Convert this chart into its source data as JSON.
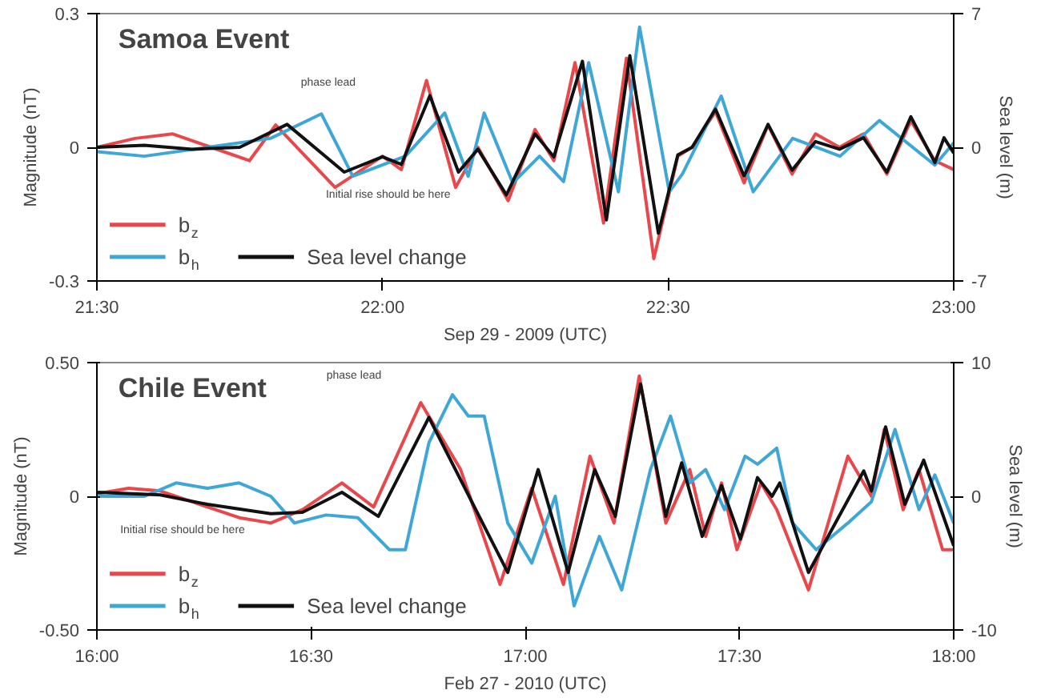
{
  "chart_data": [
    {
      "type": "line",
      "title": "Samoa Event",
      "xlabel": "Sep 29 - 2009 (UTC)",
      "ylabel": "Magnitude (nT)",
      "y2label": "Sea level (m)",
      "xlim": [
        21.5,
        23.0
      ],
      "xticks": [
        {
          "value": 21.5,
          "label": "21:30"
        },
        {
          "value": 22.0,
          "label": "22:00"
        },
        {
          "value": 22.5,
          "label": "22:30"
        },
        {
          "value": 23.0,
          "label": "23:00"
        }
      ],
      "ylim": [
        -0.3,
        0.3
      ],
      "yticks": [
        -0.3,
        0,
        0.3
      ],
      "y2lim": [
        -7,
        7
      ],
      "y2ticks": [
        -7,
        0,
        7
      ],
      "grid": false,
      "legend": "bottom left",
      "marker": "none",
      "line_style": "solid",
      "annotations": [
        "phase lead",
        "Initial rise should be here"
      ],
      "series": [
        {
          "name": "b$_{z}$",
          "color": "#e8474b",
          "x": [
            21.5,
            21.567,
            21.633,
            21.7,
            21.767,
            21.813,
            21.917,
            22.0,
            22.033,
            22.077,
            22.128,
            22.167,
            22.22,
            22.267,
            22.3,
            22.337,
            22.387,
            22.427,
            22.475,
            22.517,
            22.542,
            22.583,
            22.633,
            22.675,
            22.717,
            22.758,
            22.8,
            22.842,
            22.883,
            22.925,
            22.967,
            23.0
          ],
          "values": [
            0,
            0.02,
            0.03,
            0.0,
            -0.03,
            0.05,
            -0.09,
            -0.02,
            -0.05,
            0.15,
            -0.09,
            0.0,
            -0.12,
            0.04,
            -0.03,
            0.19,
            -0.17,
            0.2,
            -0.25,
            -0.02,
            0.0,
            0.08,
            -0.08,
            0.05,
            -0.06,
            0.03,
            0.0,
            0.03,
            -0.06,
            0.06,
            -0.03,
            -0.05
          ]
        },
        {
          "name": "b$_{h}$",
          "color": "#3fa7d6",
          "x": [
            21.5,
            21.583,
            21.694,
            21.804,
            21.893,
            21.948,
            22.04,
            22.109,
            22.15,
            22.178,
            22.228,
            22.275,
            22.317,
            22.361,
            22.413,
            22.45,
            22.502,
            22.525,
            22.593,
            22.649,
            22.718,
            22.801,
            22.87,
            22.967,
            23.0
          ],
          "values": [
            -0.01,
            -0.02,
            0.0,
            0.02,
            0.075,
            -0.065,
            -0.02,
            0.077,
            -0.065,
            0.077,
            -0.08,
            -0.02,
            -0.077,
            0.19,
            -0.1,
            0.27,
            -0.1,
            -0.06,
            0.115,
            -0.1,
            0.02,
            -0.02,
            0.06,
            -0.04,
            0.01
          ]
        },
        {
          "name": "Sea level change",
          "color": "#111111",
          "axis": "y2",
          "x": [
            21.5,
            21.583,
            21.667,
            21.75,
            21.833,
            21.933,
            22.0,
            22.033,
            22.083,
            22.133,
            22.167,
            22.217,
            22.267,
            22.3,
            22.35,
            22.392,
            22.433,
            22.483,
            22.517,
            22.542,
            22.583,
            22.633,
            22.675,
            22.717,
            22.758,
            22.8,
            22.842,
            22.883,
            22.925,
            22.967,
            22.983,
            23.0
          ],
          "values": [
            0,
            0.1,
            -0.1,
            0,
            1.2,
            -1.3,
            -0.5,
            -0.9,
            2.7,
            -1.3,
            -0.1,
            -2.5,
            0.7,
            -0.5,
            4.5,
            -3.8,
            4.8,
            -4.5,
            -0.4,
            0,
            2,
            -1.5,
            1.2,
            -1.2,
            0.3,
            -0.1,
            0.5,
            -1.3,
            1.6,
            -0.8,
            0.5,
            -0.3
          ]
        }
      ]
    },
    {
      "type": "line",
      "title": "Chile Event",
      "xlabel": "Feb 27 - 2010 (UTC)",
      "ylabel": "Magnitude (nT)",
      "y2label": "Sea level (m)",
      "xlim": [
        16.0,
        18.0
      ],
      "xticks": [
        {
          "value": 16.0,
          "label": "16:00"
        },
        {
          "value": 16.5,
          "label": "16:30"
        },
        {
          "value": 17.0,
          "label": "17:00"
        },
        {
          "value": 17.5,
          "label": "17:30"
        },
        {
          "value": 18.0,
          "label": "18:00"
        }
      ],
      "ylim": [
        -0.5,
        0.5
      ],
      "yticks": [
        {
          "value": -0.5,
          "label": "-0.50"
        },
        0,
        {
          "value": 0.5,
          "label": "0.50"
        }
      ],
      "y2lim": [
        -10,
        10
      ],
      "y2ticks": [
        -10,
        0,
        10
      ],
      "grid": false,
      "legend": "bottom left",
      "marker": "none",
      "line_style": "solid",
      "annotations": [
        "phase lead",
        "Initial rise should be here"
      ],
      "series": [
        {
          "name": "b$_{z}$",
          "color": "#e8474b",
          "x": [
            16.0,
            16.074,
            16.148,
            16.221,
            16.332,
            16.406,
            16.48,
            16.572,
            16.646,
            16.756,
            16.849,
            16.941,
            17.015,
            17.089,
            17.151,
            17.207,
            17.266,
            17.328,
            17.384,
            17.421,
            17.458,
            17.494,
            17.55,
            17.587,
            17.661,
            17.753,
            17.808,
            17.838,
            17.882,
            17.919,
            17.974,
            18.0
          ],
          "values": [
            0.01,
            0.03,
            0.02,
            -0.02,
            -0.08,
            -0.1,
            -0.05,
            0.05,
            -0.04,
            0.35,
            0.1,
            -0.33,
            0.03,
            -0.33,
            0.15,
            -0.1,
            0.45,
            -0.1,
            0.1,
            -0.15,
            0.05,
            -0.2,
            0.05,
            -0.05,
            -0.35,
            0.15,
            0.0,
            0.25,
            -0.05,
            0.1,
            -0.2,
            -0.2
          ]
        },
        {
          "name": "b$_{h}$",
          "color": "#3fa7d6",
          "x": [
            16.0,
            16.111,
            16.185,
            16.258,
            16.332,
            16.406,
            16.461,
            16.535,
            16.609,
            16.683,
            16.72,
            16.775,
            16.83,
            16.867,
            16.904,
            16.959,
            17.015,
            17.07,
            17.114,
            17.173,
            17.225,
            17.292,
            17.339,
            17.384,
            17.421,
            17.465,
            17.513,
            17.542,
            17.587,
            17.624,
            17.679,
            17.753,
            17.808,
            17.863,
            17.919,
            17.956,
            18.0
          ],
          "values": [
            0.0,
            0.0,
            0.05,
            0.03,
            0.05,
            0.0,
            -0.1,
            -0.07,
            -0.08,
            -0.2,
            -0.2,
            0.2,
            0.38,
            0.3,
            0.3,
            -0.1,
            -0.25,
            0.0,
            -0.41,
            -0.15,
            -0.35,
            0.1,
            0.3,
            0.05,
            0.1,
            -0.05,
            0.15,
            0.12,
            0.18,
            -0.1,
            -0.2,
            -0.1,
            -0.02,
            0.25,
            -0.05,
            0.08,
            -0.1
          ]
        },
        {
          "name": "Sea level change",
          "color": "#111111",
          "axis": "y2",
          "x": [
            16.0,
            16.148,
            16.258,
            16.406,
            16.48,
            16.572,
            16.657,
            16.775,
            16.959,
            17.03,
            17.1,
            17.162,
            17.21,
            17.269,
            17.328,
            17.365,
            17.413,
            17.458,
            17.502,
            17.542,
            17.576,
            17.594,
            17.661,
            17.79,
            17.808,
            17.841,
            17.886,
            17.93,
            18.0
          ],
          "values": [
            0.3,
            0.1,
            -0.6,
            -1.3,
            -1.2,
            0.3,
            -1.5,
            5.9,
            -5.7,
            2,
            -5.7,
            2,
            -1.5,
            8.4,
            -1.5,
            2.5,
            -3,
            0.8,
            -3.2,
            1.4,
            0,
            1,
            -5.7,
            1.9,
            0.4,
            5.2,
            -0.6,
            2.7,
            -3.7
          ]
        }
      ]
    }
  ]
}
